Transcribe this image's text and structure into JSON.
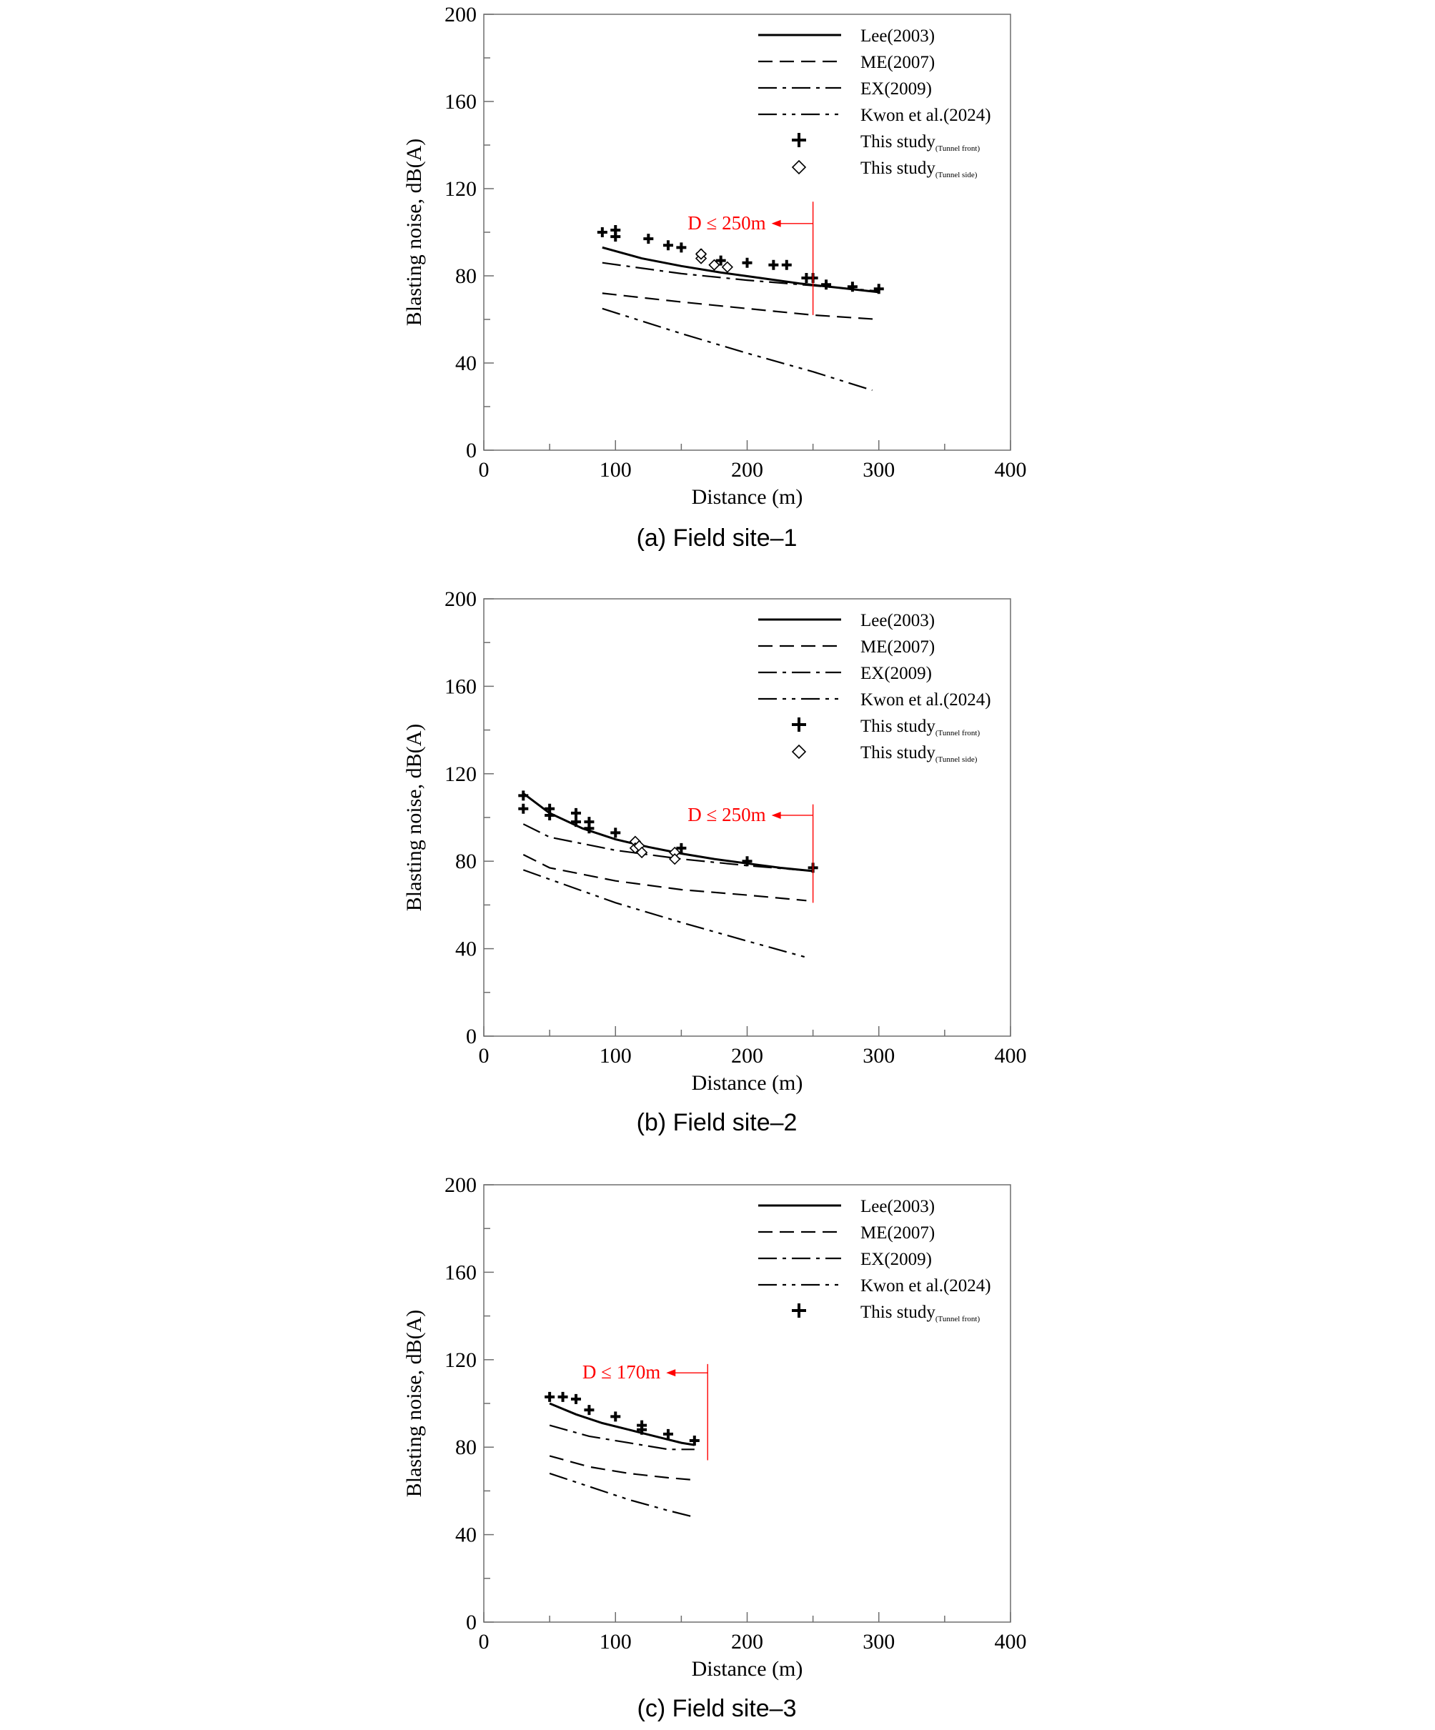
{
  "legend_items": [
    {
      "label": "Lee(2003)",
      "sub": "",
      "style": "solid"
    },
    {
      "label": "ME(2007)",
      "sub": "",
      "style": "dash"
    },
    {
      "label": "EX(2009)",
      "sub": "",
      "style": "dashdot"
    },
    {
      "label": "Kwon et al.(2024)",
      "sub": "",
      "style": "dashdotdot"
    },
    {
      "label": "This study",
      "sub": "(Tunnel front)",
      "style": "plus"
    },
    {
      "label": "This study",
      "sub": "(Tunnel side)",
      "style": "diamond"
    }
  ],
  "colors": {
    "lines": "#000000",
    "annotation": "#ff0000"
  },
  "chart_data": [
    {
      "type": "scatter",
      "caption": "(a) Field site–1",
      "xlabel": "Distance (m)",
      "ylabel": "Blasting noise, dB(A)",
      "xlim": [
        0,
        400
      ],
      "ylim": [
        0,
        200
      ],
      "xticks": [
        "0",
        "100",
        "200",
        "300",
        "400"
      ],
      "yticks": [
        "0",
        "40",
        "80",
        "120",
        "160",
        "200"
      ],
      "annotation": {
        "text": "D ≤ 250m",
        "x": 250,
        "y_range": [
          62,
          114
        ],
        "arrow_y": 104
      },
      "lines": [
        {
          "name": "Lee(2003)",
          "style": "solid",
          "x": [
            90,
            120,
            150,
            180,
            210,
            240,
            270,
            300
          ],
          "y": [
            93,
            88,
            84.5,
            81.5,
            79,
            76.5,
            74.5,
            72.5
          ]
        },
        {
          "name": "ME(2007)",
          "style": "dash",
          "x": [
            90,
            150,
            200,
            250,
            300
          ],
          "y": [
            72,
            68,
            65,
            62,
            60
          ]
        },
        {
          "name": "EX(2009)",
          "style": "dashdot",
          "x": [
            90,
            150,
            200,
            250,
            300
          ],
          "y": [
            86,
            81,
            78,
            75.5,
            73
          ]
        },
        {
          "name": "Kwon et al.(2024)",
          "style": "dashdotdot",
          "x": [
            90,
            150,
            200,
            250,
            295
          ],
          "y": [
            65,
            53.5,
            44.5,
            36,
            27.5
          ]
        }
      ],
      "front": {
        "x": [
          90,
          100,
          100,
          125,
          140,
          150,
          165,
          180,
          200,
          220,
          230,
          245,
          250,
          260,
          280,
          300
        ],
        "y": [
          100,
          101,
          98,
          97,
          94,
          93,
          90,
          87,
          86,
          85,
          85,
          79,
          79,
          76,
          75,
          74
        ]
      },
      "side": {
        "x": [
          165,
          165,
          175,
          185
        ],
        "y": [
          88,
          90,
          85,
          84
        ]
      }
    },
    {
      "type": "scatter",
      "caption": "(b) Field site–2",
      "xlabel": "Distance (m)",
      "ylabel": "Blasting noise, dB(A)",
      "xlim": [
        0,
        400
      ],
      "ylim": [
        0,
        200
      ],
      "xticks": [
        "0",
        "100",
        "200",
        "300",
        "400"
      ],
      "yticks": [
        "0",
        "40",
        "80",
        "120",
        "160",
        "200"
      ],
      "annotation": {
        "text": "D ≤ 250m",
        "x": 250,
        "y_range": [
          61,
          106
        ],
        "arrow_y": 101
      },
      "lines": [
        {
          "name": "Lee(2003)",
          "style": "solid",
          "x": [
            30,
            50,
            75,
            100,
            125,
            150,
            175,
            200,
            225,
            250
          ],
          "y": [
            111,
            102,
            95,
            90,
            86.5,
            83.5,
            81,
            79,
            77,
            75.5
          ]
        },
        {
          "name": "ME(2007)",
          "style": "dash",
          "x": [
            30,
            50,
            100,
            150,
            200,
            245
          ],
          "y": [
            83,
            77,
            71,
            67,
            64.5,
            62
          ]
        },
        {
          "name": "EX(2009)",
          "style": "dashdot",
          "x": [
            30,
            50,
            100,
            150,
            200,
            250
          ],
          "y": [
            97,
            91,
            85,
            81,
            78,
            75.5
          ]
        },
        {
          "name": "Kwon et al.(2024)",
          "style": "dashdotdot",
          "x": [
            30,
            100,
            150,
            200,
            245
          ],
          "y": [
            76,
            61,
            52,
            43.5,
            36
          ]
        }
      ],
      "front": {
        "x": [
          30,
          30,
          50,
          50,
          70,
          70,
          80,
          80,
          100,
          150,
          200,
          250
        ],
        "y": [
          110,
          104,
          104,
          101,
          102,
          98,
          98,
          95,
          93,
          86,
          80,
          77
        ]
      },
      "side": {
        "x": [
          115,
          115,
          118,
          120,
          145,
          145
        ],
        "y": [
          89,
          86,
          87,
          84,
          84,
          81
        ]
      }
    },
    {
      "type": "scatter",
      "caption": "(c) Field site–3",
      "xlabel": "Distance (m)",
      "ylabel": "Blasting noise, dB(A)",
      "xlim": [
        0,
        400
      ],
      "ylim": [
        0,
        200
      ],
      "xticks": [
        "0",
        "100",
        "200",
        "300",
        "400"
      ],
      "yticks": [
        "0",
        "40",
        "80",
        "120",
        "160",
        "200"
      ],
      "annotation": {
        "text": "D ≤ 170m",
        "x": 170,
        "y_range": [
          74,
          118
        ],
        "arrow_y": 114
      },
      "lines": [
        {
          "name": "Lee(2003)",
          "style": "solid",
          "x": [
            50,
            70,
            90,
            110,
            130,
            150,
            160
          ],
          "y": [
            100,
            95,
            91,
            88,
            85,
            82,
            81
          ]
        },
        {
          "name": "ME(2007)",
          "style": "dash",
          "x": [
            50,
            80,
            110,
            140,
            160
          ],
          "y": [
            76,
            71,
            68,
            66,
            65
          ]
        },
        {
          "name": "EX(2009)",
          "style": "dashdot",
          "x": [
            50,
            80,
            110,
            140,
            160
          ],
          "y": [
            90,
            85,
            82,
            79,
            79
          ]
        },
        {
          "name": "Kwon et al.(2024)",
          "style": "dashdotdot",
          "x": [
            50,
            80,
            110,
            140,
            160
          ],
          "y": [
            68,
            62,
            56,
            51,
            48
          ]
        }
      ],
      "front": {
        "x": [
          50,
          60,
          70,
          80,
          100,
          120,
          120,
          140,
          160
        ],
        "y": [
          103,
          103,
          102,
          97,
          94,
          90,
          88,
          86,
          83
        ]
      },
      "side": {
        "x": [],
        "y": []
      }
    }
  ]
}
